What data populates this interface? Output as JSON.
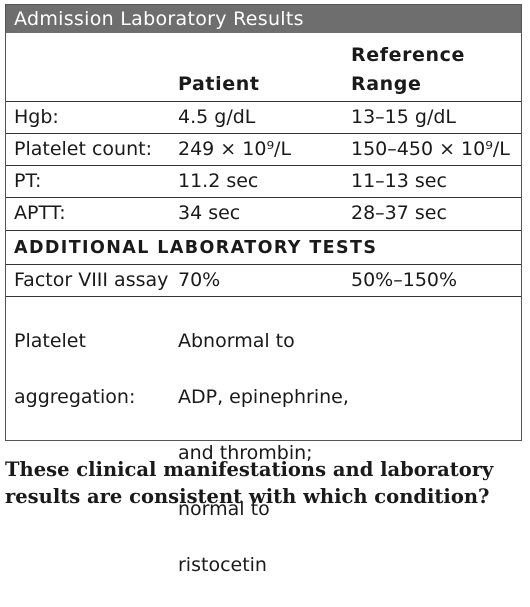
{
  "table": {
    "title": "Admission Laboratory Results",
    "headers": {
      "patient": "Patient",
      "reference_line1": "Reference",
      "reference_line2": "Range"
    },
    "rows": [
      {
        "test": "Hgb:",
        "patient": "4.5 g/dL",
        "reference": "13–15 g/dL"
      },
      {
        "test": "Platelet count:",
        "patient": "249 × 10⁹/L",
        "reference": "150–450 × 10⁹/L"
      },
      {
        "test": "PT:",
        "patient": "11.2 sec",
        "reference": "11–13 sec"
      },
      {
        "test": "APTT:",
        "patient": "34 sec",
        "reference": "28–37 sec"
      }
    ],
    "additional_section_label": "ADDITIONAL LABORATORY TESTS",
    "additional_rows": [
      {
        "test": "Factor VIII assay",
        "patient": "70%",
        "reference": "50%–150%"
      }
    ],
    "aggregation": {
      "test_line1": "Platelet",
      "test_line2": "aggregation:",
      "result_line1": "Abnormal to",
      "result_line2": "ADP, epinephrine,",
      "result_line3": "and thrombin;",
      "result_line4": "normal to",
      "result_line5": "ristocetin"
    }
  },
  "question": "These clinical manifestations and laboratory results are consistent with which condition?"
}
